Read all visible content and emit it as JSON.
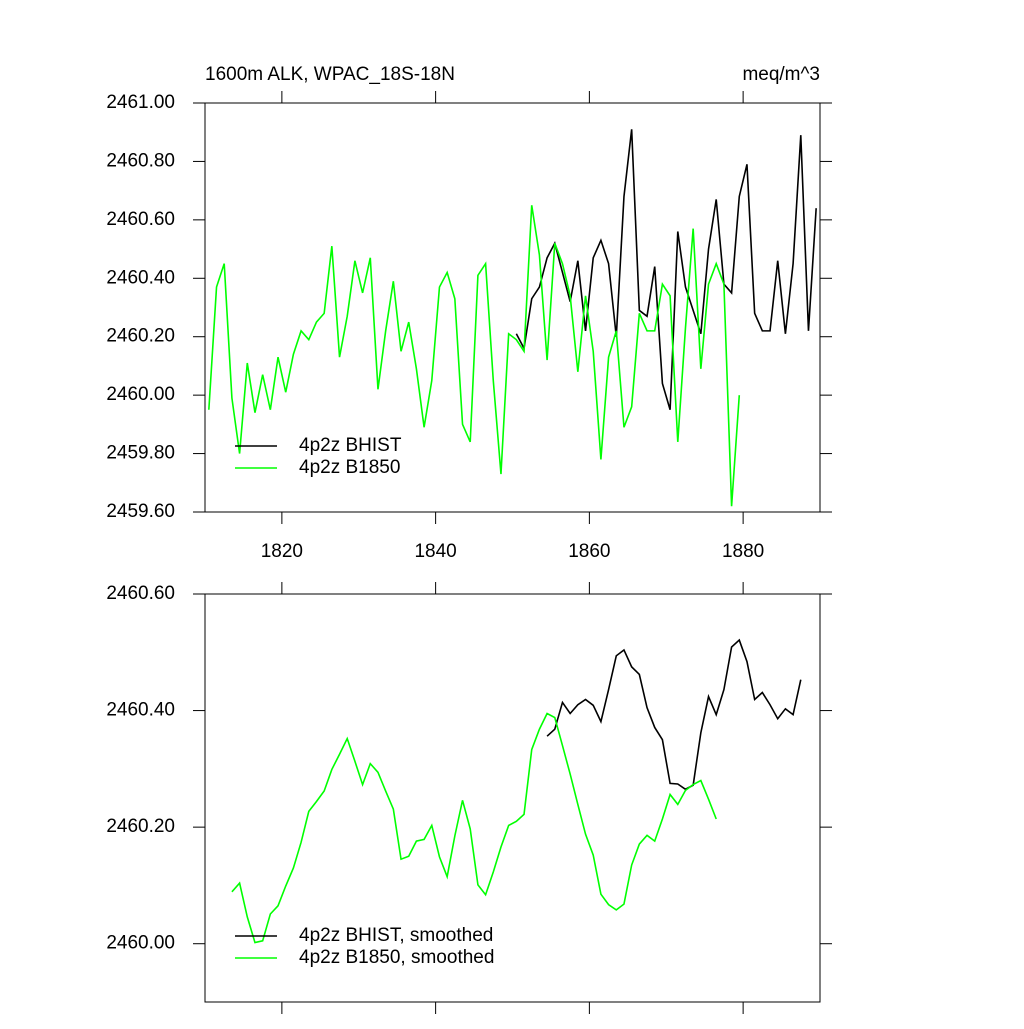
{
  "chart_data": [
    {
      "type": "line",
      "title": "1600m ALK, WPAC_18S-18N",
      "subtitle": "meq/m^3",
      "xlim": [
        1810,
        1890
      ],
      "xticks": [
        1820,
        1840,
        1860,
        1880
      ],
      "ylim": [
        2459.6,
        2461
      ],
      "yticks": [
        {
          "value": 2459.6,
          "label": "2459.60"
        },
        {
          "value": 2459.8,
          "label": "2459.80"
        },
        {
          "value": 2460,
          "label": "2460.00"
        },
        {
          "value": 2460.2,
          "label": "2460.20"
        },
        {
          "value": 2460.4,
          "label": "2460.40"
        },
        {
          "value": 2460.6,
          "label": "2460.60"
        },
        {
          "value": 2460.8,
          "label": "2460.80"
        },
        {
          "value": 2461,
          "label": "2461.00"
        }
      ],
      "legend": "lower left",
      "series": [
        {
          "name": "4p2z BHIST",
          "color": "#000000",
          "x": [
            1850.5,
            1851.5,
            1852.5,
            1853.5,
            1854.5,
            1855.5,
            1856.5,
            1857.5,
            1858.5,
            1859.5,
            1860.5,
            1861.5,
            1862.5,
            1863.5,
            1864.5,
            1865.5,
            1866.5,
            1867.5,
            1868.5,
            1869.5,
            1870.5,
            1871.5,
            1872.5,
            1873.5,
            1874.5,
            1875.5,
            1876.5,
            1877.5,
            1878.5,
            1879.5,
            1880.5,
            1881.5,
            1882.5,
            1883.5,
            1884.5,
            1885.5,
            1886.5,
            1887.5,
            1888.5,
            1889.5
          ],
          "values": [
            2460.21,
            2460.16,
            2460.33,
            2460.37,
            2460.47,
            2460.52,
            2460.42,
            2460.32,
            2460.46,
            2460.22,
            2460.47,
            2460.53,
            2460.45,
            2460.2,
            2460.68,
            2460.91,
            2460.29,
            2460.27,
            2460.44,
            2460.04,
            2459.95,
            2460.56,
            2460.37,
            2460.29,
            2460.21,
            2460.5,
            2460.67,
            2460.38,
            2460.35,
            2460.68,
            2460.79,
            2460.28,
            2460.22,
            2460.22,
            2460.46,
            2460.21,
            2460.45,
            2460.89,
            2460.22,
            2460.64
          ]
        },
        {
          "name": "4p2z B1850",
          "color": "#00ff00",
          "x": [
            1810.5,
            1811.5,
            1812.5,
            1813.5,
            1814.5,
            1815.5,
            1816.5,
            1817.5,
            1818.5,
            1819.5,
            1820.5,
            1821.5,
            1822.5,
            1823.5,
            1824.5,
            1825.5,
            1826.5,
            1827.5,
            1828.5,
            1829.5,
            1830.5,
            1831.5,
            1832.5,
            1833.5,
            1834.5,
            1835.5,
            1836.5,
            1837.5,
            1838.5,
            1839.5,
            1840.5,
            1841.5,
            1842.5,
            1843.5,
            1844.5,
            1845.5,
            1846.5,
            1847.5,
            1848.5,
            1849.5,
            1850.5,
            1851.5,
            1852.5,
            1853.5,
            1854.5,
            1855.5,
            1856.5,
            1857.5,
            1858.5,
            1859.5,
            1860.5,
            1861.5,
            1862.5,
            1863.5,
            1864.5,
            1865.5,
            1866.5,
            1867.5,
            1868.5,
            1869.5,
            1870.5,
            1871.5,
            1872.5,
            1873.5,
            1874.5,
            1875.5,
            1876.5,
            1877.5,
            1878.5,
            1879.5
          ],
          "values": [
            2459.95,
            2460.37,
            2460.45,
            2459.99,
            2459.8,
            2460.11,
            2459.94,
            2460.07,
            2459.95,
            2460.13,
            2460.01,
            2460.14,
            2460.22,
            2460.19,
            2460.25,
            2460.28,
            2460.51,
            2460.13,
            2460.27,
            2460.46,
            2460.35,
            2460.47,
            2460.02,
            2460.22,
            2460.39,
            2460.15,
            2460.25,
            2460.09,
            2459.89,
            2460.05,
            2460.37,
            2460.42,
            2460.33,
            2459.9,
            2459.84,
            2460.41,
            2460.45,
            2460.05,
            2459.73,
            2460.21,
            2460.19,
            2460.15,
            2460.65,
            2460.48,
            2460.12,
            2460.52,
            2460.45,
            2460.34,
            2460.08,
            2460.34,
            2460.15,
            2459.78,
            2460.13,
            2460.22,
            2459.89,
            2459.96,
            2460.28,
            2460.22,
            2460.22,
            2460.38,
            2460.34,
            2459.84,
            2460.23,
            2460.57,
            2460.09,
            2460.38,
            2460.45,
            2460.38,
            2459.62,
            2460.0
          ]
        }
      ]
    },
    {
      "type": "line",
      "xlim": [
        1810,
        1890
      ],
      "xticks": [
        1820,
        1840,
        1860,
        1880
      ],
      "xtick_labels": false,
      "ylim": [
        2459.9,
        2460.6
      ],
      "yticks": [
        {
          "value": 2460,
          "label": "2460.00"
        },
        {
          "value": 2460.2,
          "label": "2460.20"
        },
        {
          "value": 2460.4,
          "label": "2460.40"
        },
        {
          "value": 2460.6,
          "label": "2460.60"
        }
      ],
      "legend": "lower left",
      "series": [
        {
          "name": "4p2z BHIST, smoothed",
          "color": "#000000",
          "x": [
            1854.5,
            1855.5,
            1856.5,
            1857.5,
            1858.5,
            1859.5,
            1860.5,
            1861.5,
            1862.5,
            1863.5,
            1864.5,
            1865.5,
            1866.5,
            1867.5,
            1868.5,
            1869.5,
            1870.5,
            1871.5,
            1872.5,
            1873.5,
            1874.5,
            1875.5,
            1876.5,
            1877.5,
            1878.5,
            1879.5,
            1880.5,
            1881.5,
            1882.5,
            1883.5,
            1884.5,
            1885.5,
            1886.5,
            1887.5
          ],
          "values": [
            2460.356,
            2460.368,
            2460.414,
            2460.395,
            2460.41,
            2460.419,
            2460.409,
            2460.381,
            2460.436,
            2460.494,
            2460.504,
            2460.475,
            2460.462,
            2460.405,
            2460.371,
            2460.35,
            2460.275,
            2460.274,
            2460.265,
            2460.272,
            2460.362,
            2460.424,
            2460.393,
            2460.436,
            2460.509,
            2460.521,
            2460.484,
            2460.419,
            2460.431,
            2460.41,
            2460.386,
            2460.403,
            2460.393,
            2460.453
          ]
        },
        {
          "name": "4p2z B1850, smoothed",
          "color": "#00ff00",
          "x": [
            1813.5,
            1814.5,
            1815.5,
            1816.5,
            1817.5,
            1818.5,
            1819.5,
            1820.5,
            1821.5,
            1822.5,
            1823.5,
            1824.5,
            1825.5,
            1826.5,
            1827.5,
            1828.5,
            1829.5,
            1830.5,
            1831.5,
            1832.5,
            1833.5,
            1834.5,
            1835.5,
            1836.5,
            1837.5,
            1838.5,
            1839.5,
            1840.5,
            1841.5,
            1842.5,
            1843.5,
            1844.5,
            1845.5,
            1846.5,
            1847.5,
            1848.5,
            1849.5,
            1850.5,
            1851.5,
            1852.5,
            1853.5,
            1854.5,
            1855.5,
            1856.5,
            1857.5,
            1858.5,
            1859.5,
            1860.5,
            1861.5,
            1862.5,
            1863.5,
            1864.5,
            1865.5,
            1866.5,
            1867.5,
            1868.5,
            1869.5,
            1870.5,
            1871.5,
            1872.5,
            1873.5,
            1874.5,
            1875.5,
            1876.5
          ],
          "values": [
            2460.089,
            2460.104,
            2460.046,
            2460.002,
            2460.005,
            2460.051,
            2460.065,
            2460.099,
            2460.13,
            2460.174,
            2460.227,
            2460.244,
            2460.262,
            2460.299,
            2460.325,
            2460.352,
            2460.313,
            2460.273,
            2460.309,
            2460.294,
            2460.262,
            2460.231,
            2460.145,
            2460.15,
            2460.176,
            2460.179,
            2460.203,
            2460.149,
            2460.115,
            2460.185,
            2460.246,
            2460.197,
            2460.101,
            2460.084,
            2460.123,
            2460.166,
            2460.203,
            2460.21,
            2460.222,
            2460.333,
            2460.368,
            2460.395,
            2460.388,
            2460.34,
            2460.291,
            2460.239,
            2460.188,
            2460.152,
            2460.085,
            2460.067,
            2460.058,
            2460.068,
            2460.135,
            2460.171,
            2460.186,
            2460.176,
            2460.214,
            2460.256,
            2460.239,
            2460.263,
            2460.273,
            2460.28,
            2460.248,
            2460.214
          ]
        }
      ]
    }
  ]
}
